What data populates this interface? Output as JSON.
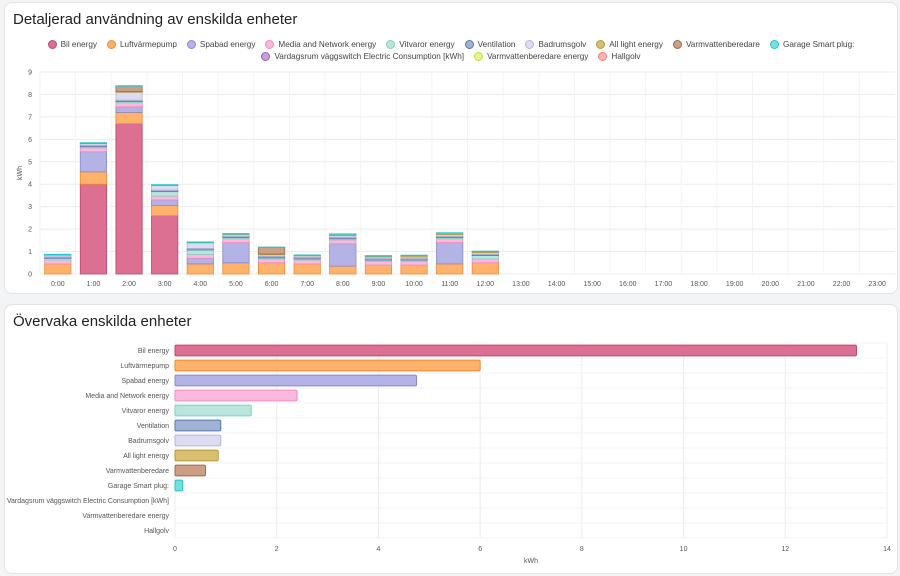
{
  "card1": {
    "title": "Detaljerad användning av enskilda enheter"
  },
  "card2": {
    "title": "Övervaka enskilda enheter"
  },
  "colors": {
    "Bil energy": "#db7093",
    "Luftvärmepump": "#ffb26b",
    "Spabad energy": "#b3b3e6",
    "Media and Network energy": "#ffb8dd",
    "Vitvaror energy": "#b9e6dc",
    "Ventilation": "#9fb3d4",
    "Badrumsgolv": "#dddbf0",
    "All light energy": "#d9c070",
    "Varmvattenberedare": "#cc9e85",
    "Garage Smart plug:": "#7adde0",
    "Vardagsrum väggswitch Electric Consumption [kWh]": "#c99fd6",
    "Varmvattenberedare energy": "#e4f58c",
    "Hallgolv": "#ffb3ae"
  },
  "borders": {
    "Bil energy": "#c0476f",
    "Luftvärmepump": "#f08a2e",
    "Spabad energy": "#8888cc",
    "Media and Network energy": "#f08cc0",
    "Vitvaror energy": "#84cfbd",
    "Ventilation": "#5a78a8",
    "Badrumsgolv": "#b8b5dc",
    "All light energy": "#b39a3a",
    "Varmvattenberedare": "#9e6a4e",
    "Garage Smart plug:": "#1ec8cc",
    "Vardagsrum väggswitch Electric Consumption [kWh]": "#9a5fb0",
    "Varmvattenberedare energy": "#c2dd3e",
    "Hallgolv": "#f08078"
  },
  "chart_data": [
    {
      "type": "bar",
      "stacked": true,
      "title": "Detaljerad användning av enskilda enheter",
      "ylabel": "kWh",
      "xlabel": "",
      "ylim": [
        0,
        9
      ],
      "yticks": [
        0,
        1,
        2,
        3,
        4,
        5,
        6,
        7,
        8,
        9
      ],
      "categories": [
        "0:00",
        "1:00",
        "2:00",
        "3:00",
        "4:00",
        "5:00",
        "6:00",
        "7:00",
        "8:00",
        "9:00",
        "10:00",
        "11:00",
        "12:00",
        "13:00",
        "14:00",
        "15:00",
        "16:00",
        "17:00",
        "18:00",
        "19:00",
        "20:00",
        "21:00",
        "22:00",
        "23:00"
      ],
      "legend_position": "top",
      "grid": true,
      "series": [
        {
          "name": "Bil energy",
          "values": [
            0,
            4.0,
            6.7,
            2.6,
            0,
            0,
            0,
            0,
            0,
            0,
            0,
            0,
            0,
            0,
            0,
            0,
            0,
            0,
            0,
            0,
            0,
            0,
            0,
            0
          ]
        },
        {
          "name": "Luftvärmepump",
          "values": [
            0.45,
            0.55,
            0.5,
            0.45,
            0.45,
            0.5,
            0.5,
            0.45,
            0.35,
            0.4,
            0.4,
            0.45,
            0.5,
            0,
            0,
            0,
            0,
            0,
            0,
            0,
            0,
            0,
            0,
            0
          ]
        },
        {
          "name": "Spabad energy",
          "values": [
            0,
            0.9,
            0.25,
            0.25,
            0.25,
            0.9,
            0,
            0,
            1.0,
            0,
            0,
            0.95,
            0,
            0,
            0,
            0,
            0,
            0,
            0,
            0,
            0,
            0,
            0,
            0
          ]
        },
        {
          "name": "Media and Network energy",
          "values": [
            0.17,
            0.17,
            0.18,
            0.17,
            0.17,
            0.17,
            0.17,
            0.17,
            0.17,
            0.17,
            0.17,
            0.17,
            0.17,
            0,
            0,
            0,
            0,
            0,
            0,
            0,
            0,
            0,
            0,
            0
          ]
        },
        {
          "name": "Vitvaror energy",
          "values": [
            0.08,
            0.05,
            0.05,
            0.2,
            0.2,
            0.05,
            0.05,
            0.05,
            0.05,
            0.05,
            0.05,
            0.05,
            0.15,
            0,
            0,
            0,
            0,
            0,
            0,
            0,
            0,
            0,
            0,
            0
          ]
        },
        {
          "name": "Ventilation",
          "values": [
            0.07,
            0.07,
            0.07,
            0.07,
            0.07,
            0.07,
            0.07,
            0.07,
            0.07,
            0.07,
            0.07,
            0.07,
            0.07,
            0,
            0,
            0,
            0,
            0,
            0,
            0,
            0,
            0,
            0,
            0
          ]
        },
        {
          "name": "Badrumsgolv",
          "values": [
            0.07,
            0.07,
            0.35,
            0.2,
            0.25,
            0.07,
            0.07,
            0.07,
            0.07,
            0.07,
            0.07,
            0.07,
            0.07,
            0,
            0,
            0,
            0,
            0,
            0,
            0,
            0,
            0,
            0,
            0
          ]
        },
        {
          "name": "All light energy",
          "values": [
            0.03,
            0.03,
            0.03,
            0.03,
            0.03,
            0.03,
            0.03,
            0.03,
            0.07,
            0.05,
            0.07,
            0.07,
            0.05,
            0,
            0,
            0,
            0,
            0,
            0,
            0,
            0,
            0,
            0,
            0
          ]
        },
        {
          "name": "Varmvattenberedare",
          "values": [
            0,
            0,
            0.25,
            0,
            0,
            0,
            0.3,
            0,
            0,
            0,
            0,
            0,
            0,
            0,
            0,
            0,
            0,
            0,
            0,
            0,
            0,
            0,
            0,
            0
          ]
        },
        {
          "name": "Garage Smart plug:",
          "values": [
            0.01,
            0.01,
            0.01,
            0.01,
            0.01,
            0.01,
            0.01,
            0.01,
            0.01,
            0.01,
            0.01,
            0.01,
            0.01,
            0,
            0,
            0,
            0,
            0,
            0,
            0,
            0,
            0,
            0,
            0
          ]
        },
        {
          "name": "Vardagsrum väggswitch Electric Consumption [kWh]",
          "values": [
            0,
            0,
            0,
            0,
            0,
            0,
            0,
            0,
            0,
            0,
            0,
            0,
            0,
            0,
            0,
            0,
            0,
            0,
            0,
            0,
            0,
            0,
            0,
            0
          ]
        },
        {
          "name": "Varmvattenberedare energy",
          "values": [
            0,
            0,
            0,
            0,
            0,
            0,
            0,
            0,
            0,
            0,
            0,
            0,
            0,
            0,
            0,
            0,
            0,
            0,
            0,
            0,
            0,
            0,
            0,
            0
          ]
        },
        {
          "name": "Hallgolv",
          "values": [
            0,
            0,
            0,
            0,
            0,
            0,
            0,
            0,
            0,
            0,
            0,
            0,
            0,
            0,
            0,
            0,
            0,
            0,
            0,
            0,
            0,
            0,
            0,
            0
          ]
        }
      ]
    },
    {
      "type": "bar",
      "orientation": "horizontal",
      "title": "Övervaka enskilda enheter",
      "xlabel": "kWh",
      "ylabel": "",
      "xlim": [
        0,
        14
      ],
      "xticks": [
        0,
        2,
        4,
        6,
        8,
        10,
        12,
        14
      ],
      "grid": true,
      "categories": [
        "Bil energy",
        "Luftvärmepump",
        "Spabad energy",
        "Media and Network energy",
        "Vitvaror energy",
        "Ventilation",
        "Badrumsgolv",
        "All light energy",
        "Varmvattenberedare",
        "Garage Smart plug:",
        "Vardagsrum väggswitch Electric Consumption [kWh]",
        "Varmvattenberedare energy",
        "Hallgolv"
      ],
      "values": [
        13.4,
        6.0,
        4.75,
        2.4,
        1.5,
        0.9,
        0.9,
        0.85,
        0.6,
        0.15,
        0,
        0,
        0
      ]
    }
  ]
}
